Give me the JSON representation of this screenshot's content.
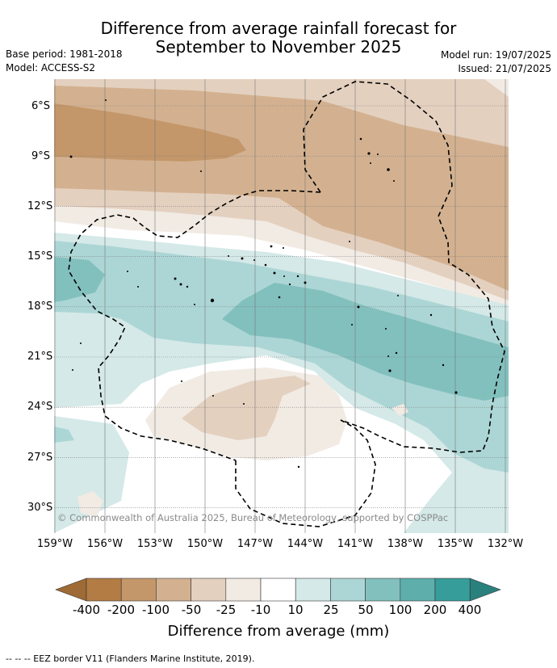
{
  "header": {
    "title_line1": "Difference from average rainfall forecast for",
    "title_line2": "September to November 2025",
    "base_period": "Base period: 1981-2018",
    "model": "Model: ACCESS-S2",
    "model_run": "Model run: 19/07/2025",
    "issued": "Issued: 21/07/2025"
  },
  "map": {
    "lat_ticks": [
      "6°S",
      "9°S",
      "12°S",
      "15°S",
      "18°S",
      "21°S",
      "24°S",
      "27°S",
      "30°S"
    ],
    "lon_ticks": [
      "159°W",
      "156°W",
      "153°W",
      "150°W",
      "147°W",
      "144°W",
      "141°W",
      "138°W",
      "135°W",
      "132°W"
    ],
    "copyright": "© Commonwealth of Australia 2025, Bureau of Meteorology, supported by COSPPac"
  },
  "colorbar": {
    "title": "Difference from average (mm)",
    "boundaries": [
      "-400",
      "-200",
      "-100",
      "-50",
      "-25",
      "-10",
      "10",
      "25",
      "50",
      "100",
      "200",
      "400"
    ],
    "colors": [
      "#9e6a35",
      "#b37c45",
      "#c4976a",
      "#d3b190",
      "#e4d0bf",
      "#f1ebe4",
      "#ffffff",
      "#d4e9e8",
      "#acd6d5",
      "#82c0be",
      "#5eaeac",
      "#369d9a",
      "#2a807c"
    ]
  },
  "footnote": "-- -- -- EEZ border V11 (Flanders Marine Institute, 2019)."
}
